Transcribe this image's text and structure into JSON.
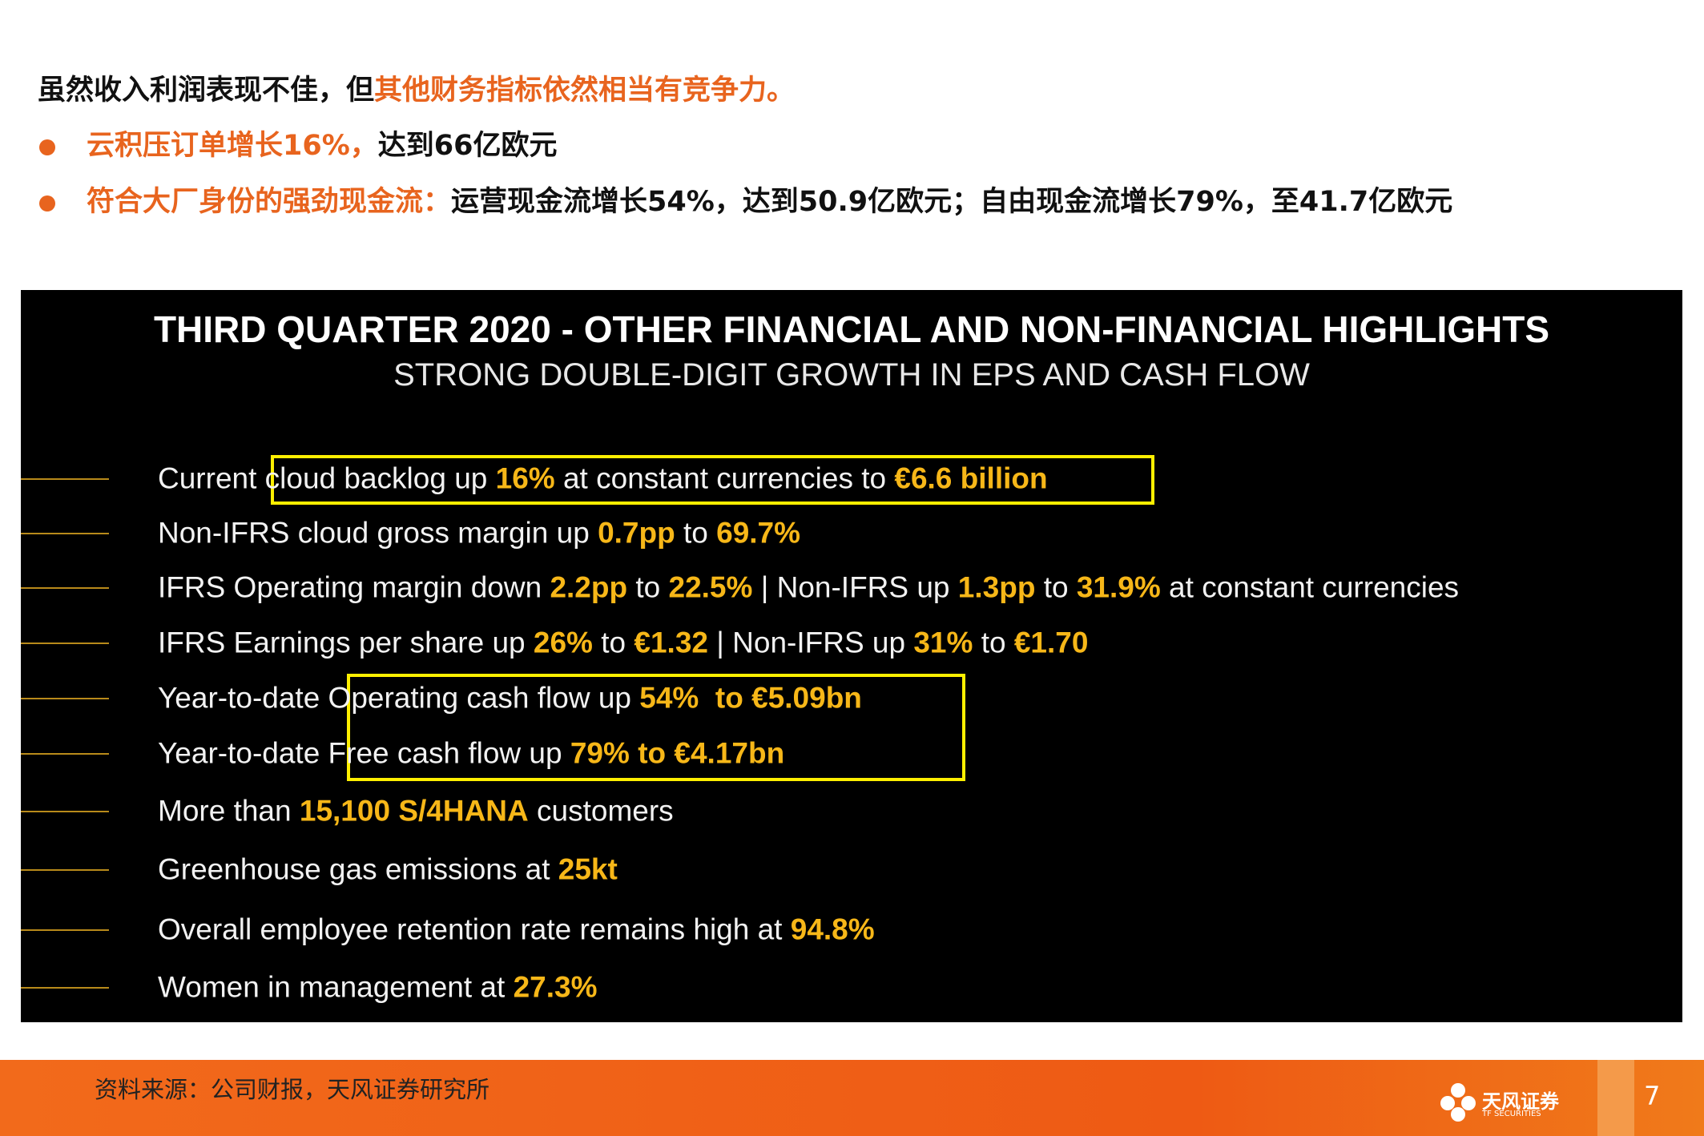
{
  "header": {
    "lines": [
      [
        {
          "text": "虽然收入利润表现不佳，但",
          "highlight": false
        },
        {
          "text": "其他财务指标依然相当有竞争力。",
          "highlight": true
        }
      ]
    ],
    "bullets": [
      [
        {
          "text": "云积压订单增长16%，",
          "highlight": true
        },
        {
          "text": "达到66亿欧元",
          "highlight": false
        }
      ],
      [
        {
          "text": "符合大厂身份的强劲现金流：",
          "highlight": true
        },
        {
          "text": "运营现金流增长54%，达到50.9亿欧元；自由现金流增长79%，至41.7亿欧元",
          "highlight": false
        }
      ]
    ]
  },
  "slide": {
    "title": "THIRD QUARTER 2020 - OTHER FINANCIAL AND NON-FINANCIAL HIGHLIGHTS",
    "subtitle": "STRONG DOUBLE-DIGIT GROWTH IN EPS AND CASH FLOW",
    "items": [
      [
        {
          "text": "Current cloud backlog up ",
          "highlight": false
        },
        {
          "text": "16%",
          "highlight": true
        },
        {
          "text": " at constant currencies to ",
          "highlight": false
        },
        {
          "text": "€6.6 billion",
          "highlight": true
        }
      ],
      [
        {
          "text": "Non-IFRS cloud gross margin up ",
          "highlight": false
        },
        {
          "text": "0.7pp",
          "highlight": true
        },
        {
          "text": " to ",
          "highlight": false
        },
        {
          "text": "69.7%",
          "highlight": true
        }
      ],
      [
        {
          "text": "IFRS Operating margin down ",
          "highlight": false
        },
        {
          "text": "2.2pp",
          "highlight": true
        },
        {
          "text": " to ",
          "highlight": false
        },
        {
          "text": "22.5%",
          "highlight": true
        },
        {
          "text": " | Non-IFRS up ",
          "highlight": false
        },
        {
          "text": "1.3pp",
          "highlight": true
        },
        {
          "text": " to ",
          "highlight": false
        },
        {
          "text": "31.9%",
          "highlight": true
        },
        {
          "text": " at constant currencies",
          "highlight": false
        }
      ],
      [
        {
          "text": "IFRS Earnings per share up ",
          "highlight": false
        },
        {
          "text": "26%",
          "highlight": true
        },
        {
          "text": " to ",
          "highlight": false
        },
        {
          "text": "€1.32",
          "highlight": true
        },
        {
          "text": " | Non-IFRS up ",
          "highlight": false
        },
        {
          "text": "31%",
          "highlight": true
        },
        {
          "text": " to ",
          "highlight": false
        },
        {
          "text": "€1.70",
          "highlight": true
        }
      ],
      [
        {
          "text": "Year-to-date Operating cash flow up ",
          "highlight": false
        },
        {
          "text": "54%  to €5.09bn",
          "highlight": true
        }
      ],
      [
        {
          "text": "Year-to-date Free cash flow up ",
          "highlight": false
        },
        {
          "text": "79% to €4.17bn",
          "highlight": true
        }
      ],
      [
        {
          "text": "More than ",
          "highlight": false
        },
        {
          "text": "15,100 S/4HANA",
          "highlight": true
        },
        {
          "text": " customers",
          "highlight": false
        }
      ],
      [
        {
          "text": "Greenhouse gas emissions at ",
          "highlight": false
        },
        {
          "text": "25kt",
          "highlight": true
        }
      ],
      [
        {
          "text": "Overall employee retention rate remains high at ",
          "highlight": false
        },
        {
          "text": "94.8%",
          "highlight": true
        }
      ],
      [
        {
          "text": "Women in management at ",
          "highlight": false
        },
        {
          "text": "27.3%",
          "highlight": true
        }
      ]
    ]
  },
  "footer": {
    "source": "资料来源：公司财报，天风证券研究所",
    "logo": "天风证券",
    "logo_en": "TF SECURITIES",
    "page": "7"
  }
}
